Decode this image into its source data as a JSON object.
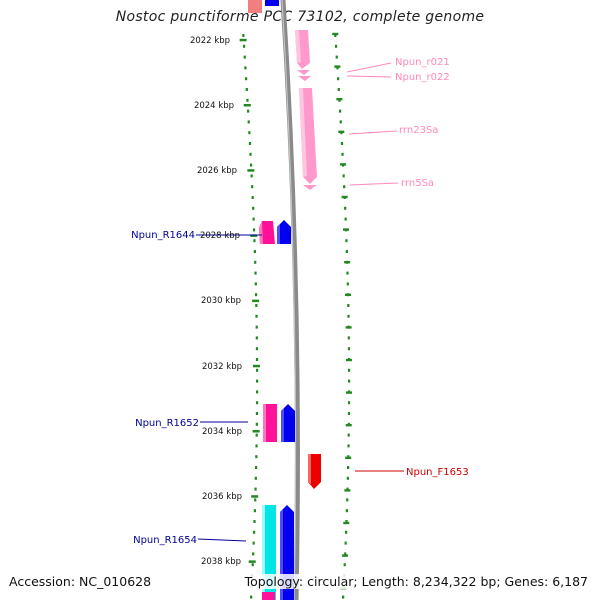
{
  "title": "Nostoc punctiforme PCC 73102, complete genome",
  "accession": "Accession: NC_010628",
  "topology": "Topology: circular; Length: 8,234,322 bp; Genes: 6,187",
  "colors": {
    "ruler": "#228822",
    "backbone": "#888888",
    "rrna": "#ff99cc",
    "trna_pink": "#ff1199",
    "cds_blue": "#0000ee",
    "cyan": "#00e6e6",
    "red": "#ee0000",
    "label_blue": "#000099",
    "label_pink": "#ff88bb",
    "label_red": "#cc0000"
  },
  "ruler_ticks": [
    {
      "kbp": 2022,
      "label": "2022 kbp"
    },
    {
      "kbp": 2024,
      "label": "2024 kbp"
    },
    {
      "kbp": 2026,
      "label": "2026 kbp"
    },
    {
      "kbp": 2028,
      "label": "2028 kbp"
    },
    {
      "kbp": 2030,
      "label": "2030 kbp"
    },
    {
      "kbp": 2032,
      "label": "2032 kbp"
    },
    {
      "kbp": 2034,
      "label": "2034 kbp"
    },
    {
      "kbp": 2036,
      "label": "2036 kbp"
    },
    {
      "kbp": 2038,
      "label": "2038 kbp"
    }
  ],
  "feature_labels": [
    {
      "name": "Npun_r021",
      "side": "right",
      "color": "pink"
    },
    {
      "name": "Npun_r022",
      "side": "right",
      "color": "pink"
    },
    {
      "name": "rrn23Sa",
      "side": "right",
      "color": "pink"
    },
    {
      "name": "rrn5Sa",
      "side": "right",
      "color": "pink"
    },
    {
      "name": "Npun_R1644",
      "side": "left",
      "color": "blue"
    },
    {
      "name": "Npun_R1652",
      "side": "left",
      "color": "blue"
    },
    {
      "name": "Npun_F1653",
      "side": "right",
      "color": "red"
    },
    {
      "name": "Npun_R1654",
      "side": "left",
      "color": "blue"
    }
  ]
}
